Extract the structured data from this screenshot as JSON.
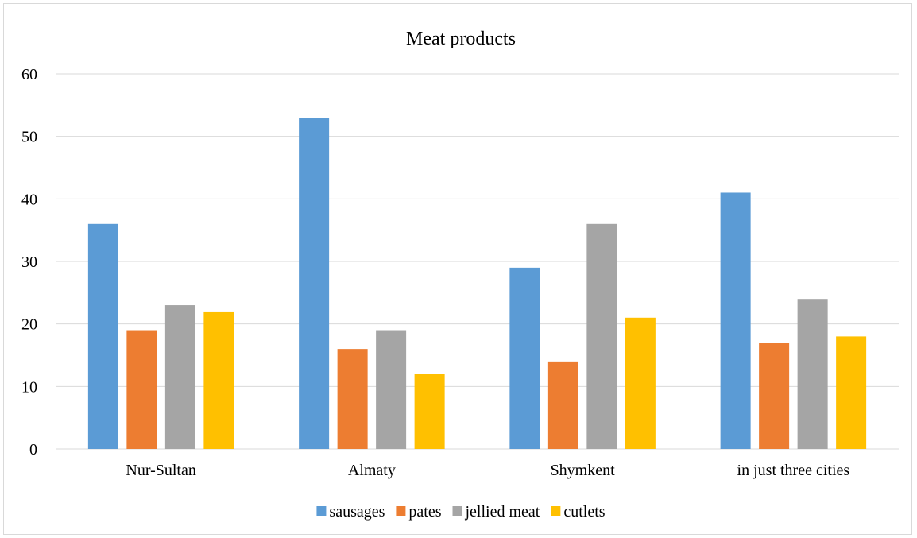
{
  "chart_data": {
    "type": "bar",
    "title": "Meat products",
    "xlabel": "",
    "ylabel": "",
    "categories": [
      "Nur-Sultan",
      "Almaty",
      "Shymkent",
      "in just three cities"
    ],
    "series": [
      {
        "name": "sausages",
        "values": [
          36,
          53,
          29,
          41
        ],
        "color": "#5b9bd5"
      },
      {
        "name": "pates",
        "values": [
          19,
          16,
          14,
          17
        ],
        "color": "#ed7d31"
      },
      {
        "name": "jellied meat",
        "values": [
          23,
          19,
          36,
          24
        ],
        "color": "#a5a5a5"
      },
      {
        "name": "cutlets",
        "values": [
          22,
          12,
          21,
          18
        ],
        "color": "#ffc000"
      }
    ],
    "ylim": [
      0,
      60
    ],
    "yticks": [
      0,
      10,
      20,
      30,
      40,
      50,
      60
    ],
    "grid": true,
    "legend_position": "bottom"
  }
}
